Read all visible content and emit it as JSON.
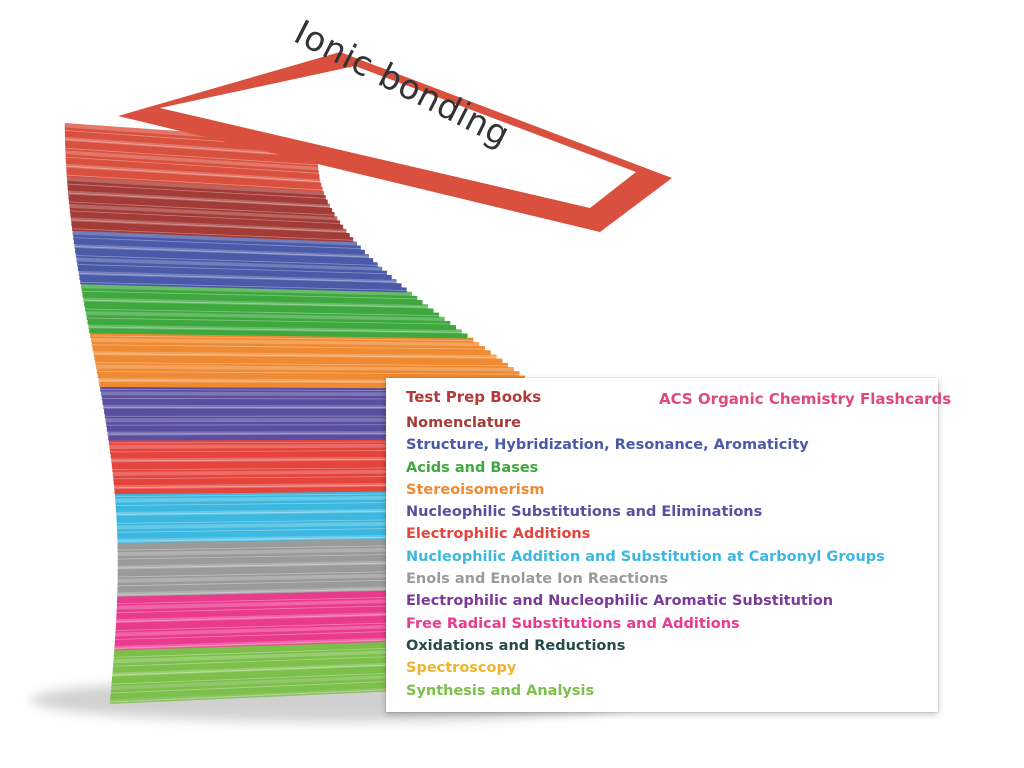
{
  "front_card": {
    "title": "Ionic bonding",
    "border_color": "#d9503f"
  },
  "legend_card": {
    "brand": "Test Prep Books",
    "product": "ACS Organic Chemistry Flashcards",
    "brand_color": "#b33a3a",
    "product_color": "#e0487c",
    "topics": [
      {
        "label": "Nomenclature",
        "color": "#a33b36"
      },
      {
        "label": "Structure, Hybridization, Resonance, Aromaticity",
        "color": "#4a5aa8"
      },
      {
        "label": "Acids and Bases",
        "color": "#3ea83e"
      },
      {
        "label": "Stereoisomerism",
        "color": "#f08a32"
      },
      {
        "label": "Nucleophilic Substitutions and Eliminations",
        "color": "#5a4ea0"
      },
      {
        "label": "Electrophilic Additions",
        "color": "#e4443c"
      },
      {
        "label": "Nucleophilic Addition and Substitution at Carbonyl Groups",
        "color": "#3cb8e0"
      },
      {
        "label": "Enols and Enolate Ion Reactions",
        "color": "#9a9a9a"
      },
      {
        "label": "Electrophilic and Nucleophilic Aromatic Substitution",
        "color": "#7a3a98"
      },
      {
        "label": "Free Radical Substitutions and Additions",
        "color": "#ea3a8e"
      },
      {
        "label": "Oxidations and Reductions",
        "color": "#274a4a"
      },
      {
        "label": "Spectroscopy",
        "color": "#f2b22e"
      },
      {
        "label": "Synthesis and Analysis",
        "color": "#7cbf4a"
      }
    ]
  },
  "stack_colors": [
    "#7cbf4a",
    "#ea3a8e",
    "#9a9a9a",
    "#3cb8e0",
    "#e4443c",
    "#5a4ea0",
    "#f08a32",
    "#3ea83e",
    "#4a5aa8",
    "#a33b36",
    "#d9503f"
  ]
}
